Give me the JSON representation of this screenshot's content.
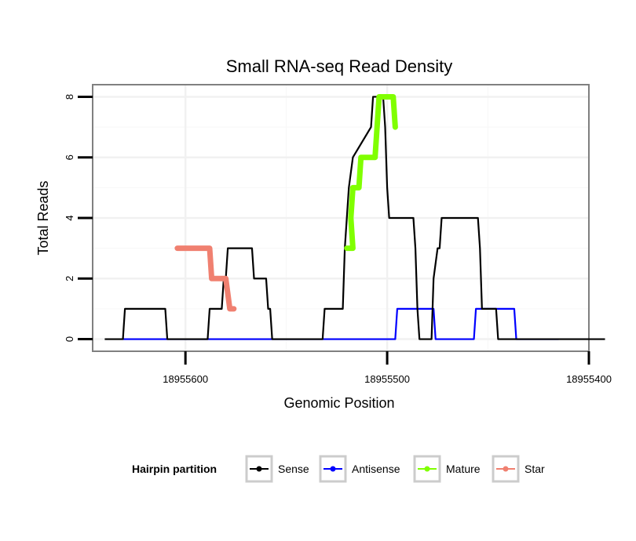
{
  "chart_data": {
    "type": "line",
    "title": "Small RNA-seq Read Density",
    "xlabel": "Genomic Position",
    "ylabel": "Total Reads",
    "x_reversed": true,
    "xlim": [
      18955646,
      18955400
    ],
    "ylim": [
      -0.4,
      8.4
    ],
    "xticks": [
      18955600,
      18955500,
      18955400
    ],
    "xtick_labels": [
      "18955600",
      "18955500",
      "18955400"
    ],
    "yticks": [
      0,
      2,
      4,
      6,
      8
    ],
    "ytick_labels": [
      "0",
      "2",
      "4",
      "6",
      "8"
    ],
    "grid": true,
    "legend": {
      "title": "Hairpin partition",
      "placement": "bottom",
      "entries": [
        {
          "label": "Sense",
          "color": "#000000"
        },
        {
          "label": "Antisense",
          "color": "#0000FF"
        },
        {
          "label": "Mature",
          "color": "#80FF00"
        },
        {
          "label": "Star",
          "color": "#F08070"
        }
      ]
    },
    "series": [
      {
        "name": "Sense",
        "color": "#000000",
        "points": [
          [
            18955640,
            0
          ],
          [
            18955631,
            0
          ],
          [
            18955630,
            1
          ],
          [
            18955610,
            1
          ],
          [
            18955609,
            0
          ],
          [
            18955589,
            0
          ],
          [
            18955588,
            1
          ],
          [
            18955582,
            1
          ],
          [
            18955581,
            2
          ],
          [
            18955580,
            2
          ],
          [
            18955579,
            3
          ],
          [
            18955567,
            3
          ],
          [
            18955566,
            2
          ],
          [
            18955560,
            2
          ],
          [
            18955559,
            1
          ],
          [
            18955558,
            1
          ],
          [
            18955557,
            0
          ],
          [
            18955532,
            0
          ],
          [
            18955531,
            1
          ],
          [
            18955522,
            1
          ],
          [
            18955521,
            3
          ],
          [
            18955520,
            4
          ],
          [
            18955519,
            5
          ],
          [
            18955517,
            6
          ],
          [
            18955508,
            7
          ],
          [
            18955507,
            8
          ],
          [
            18955502,
            8
          ],
          [
            18955501,
            7
          ],
          [
            18955500,
            5
          ],
          [
            18955499,
            4
          ],
          [
            18955487,
            4
          ],
          [
            18955486,
            3
          ],
          [
            18955485,
            1
          ],
          [
            18955484,
            0
          ],
          [
            18955478,
            0
          ],
          [
            18955477,
            2
          ],
          [
            18955475,
            3
          ],
          [
            18955474,
            3
          ],
          [
            18955473,
            4
          ],
          [
            18955455,
            4
          ],
          [
            18955454,
            3
          ],
          [
            18955453,
            1
          ],
          [
            18955446,
            1
          ],
          [
            18955445,
            0
          ],
          [
            18955392,
            0
          ]
        ]
      },
      {
        "name": "Antisense",
        "color": "#0000FF",
        "points": [
          [
            18955631,
            0
          ],
          [
            18955496,
            0
          ],
          [
            18955495,
            1
          ],
          [
            18955477,
            1
          ],
          [
            18955476,
            0
          ],
          [
            18955457,
            0
          ],
          [
            18955456,
            1
          ],
          [
            18955437,
            1
          ],
          [
            18955436,
            0
          ],
          [
            18955415,
            0
          ]
        ]
      },
      {
        "name": "Mature",
        "color": "#80FF00",
        "points": [
          [
            18955520,
            3
          ],
          [
            18955517,
            3
          ],
          [
            18955518,
            4
          ],
          [
            18955517,
            5
          ],
          [
            18955514,
            5
          ],
          [
            18955513,
            6
          ],
          [
            18955506,
            6
          ],
          [
            18955505,
            7
          ],
          [
            18955504,
            8
          ],
          [
            18955497,
            8
          ],
          [
            18955496,
            7
          ]
        ]
      },
      {
        "name": "Star",
        "color": "#F08070",
        "points": [
          [
            18955604,
            3
          ],
          [
            18955588,
            3
          ],
          [
            18955587,
            2
          ],
          [
            18955580,
            2
          ],
          [
            18955578,
            1
          ],
          [
            18955576,
            1
          ]
        ]
      }
    ]
  }
}
